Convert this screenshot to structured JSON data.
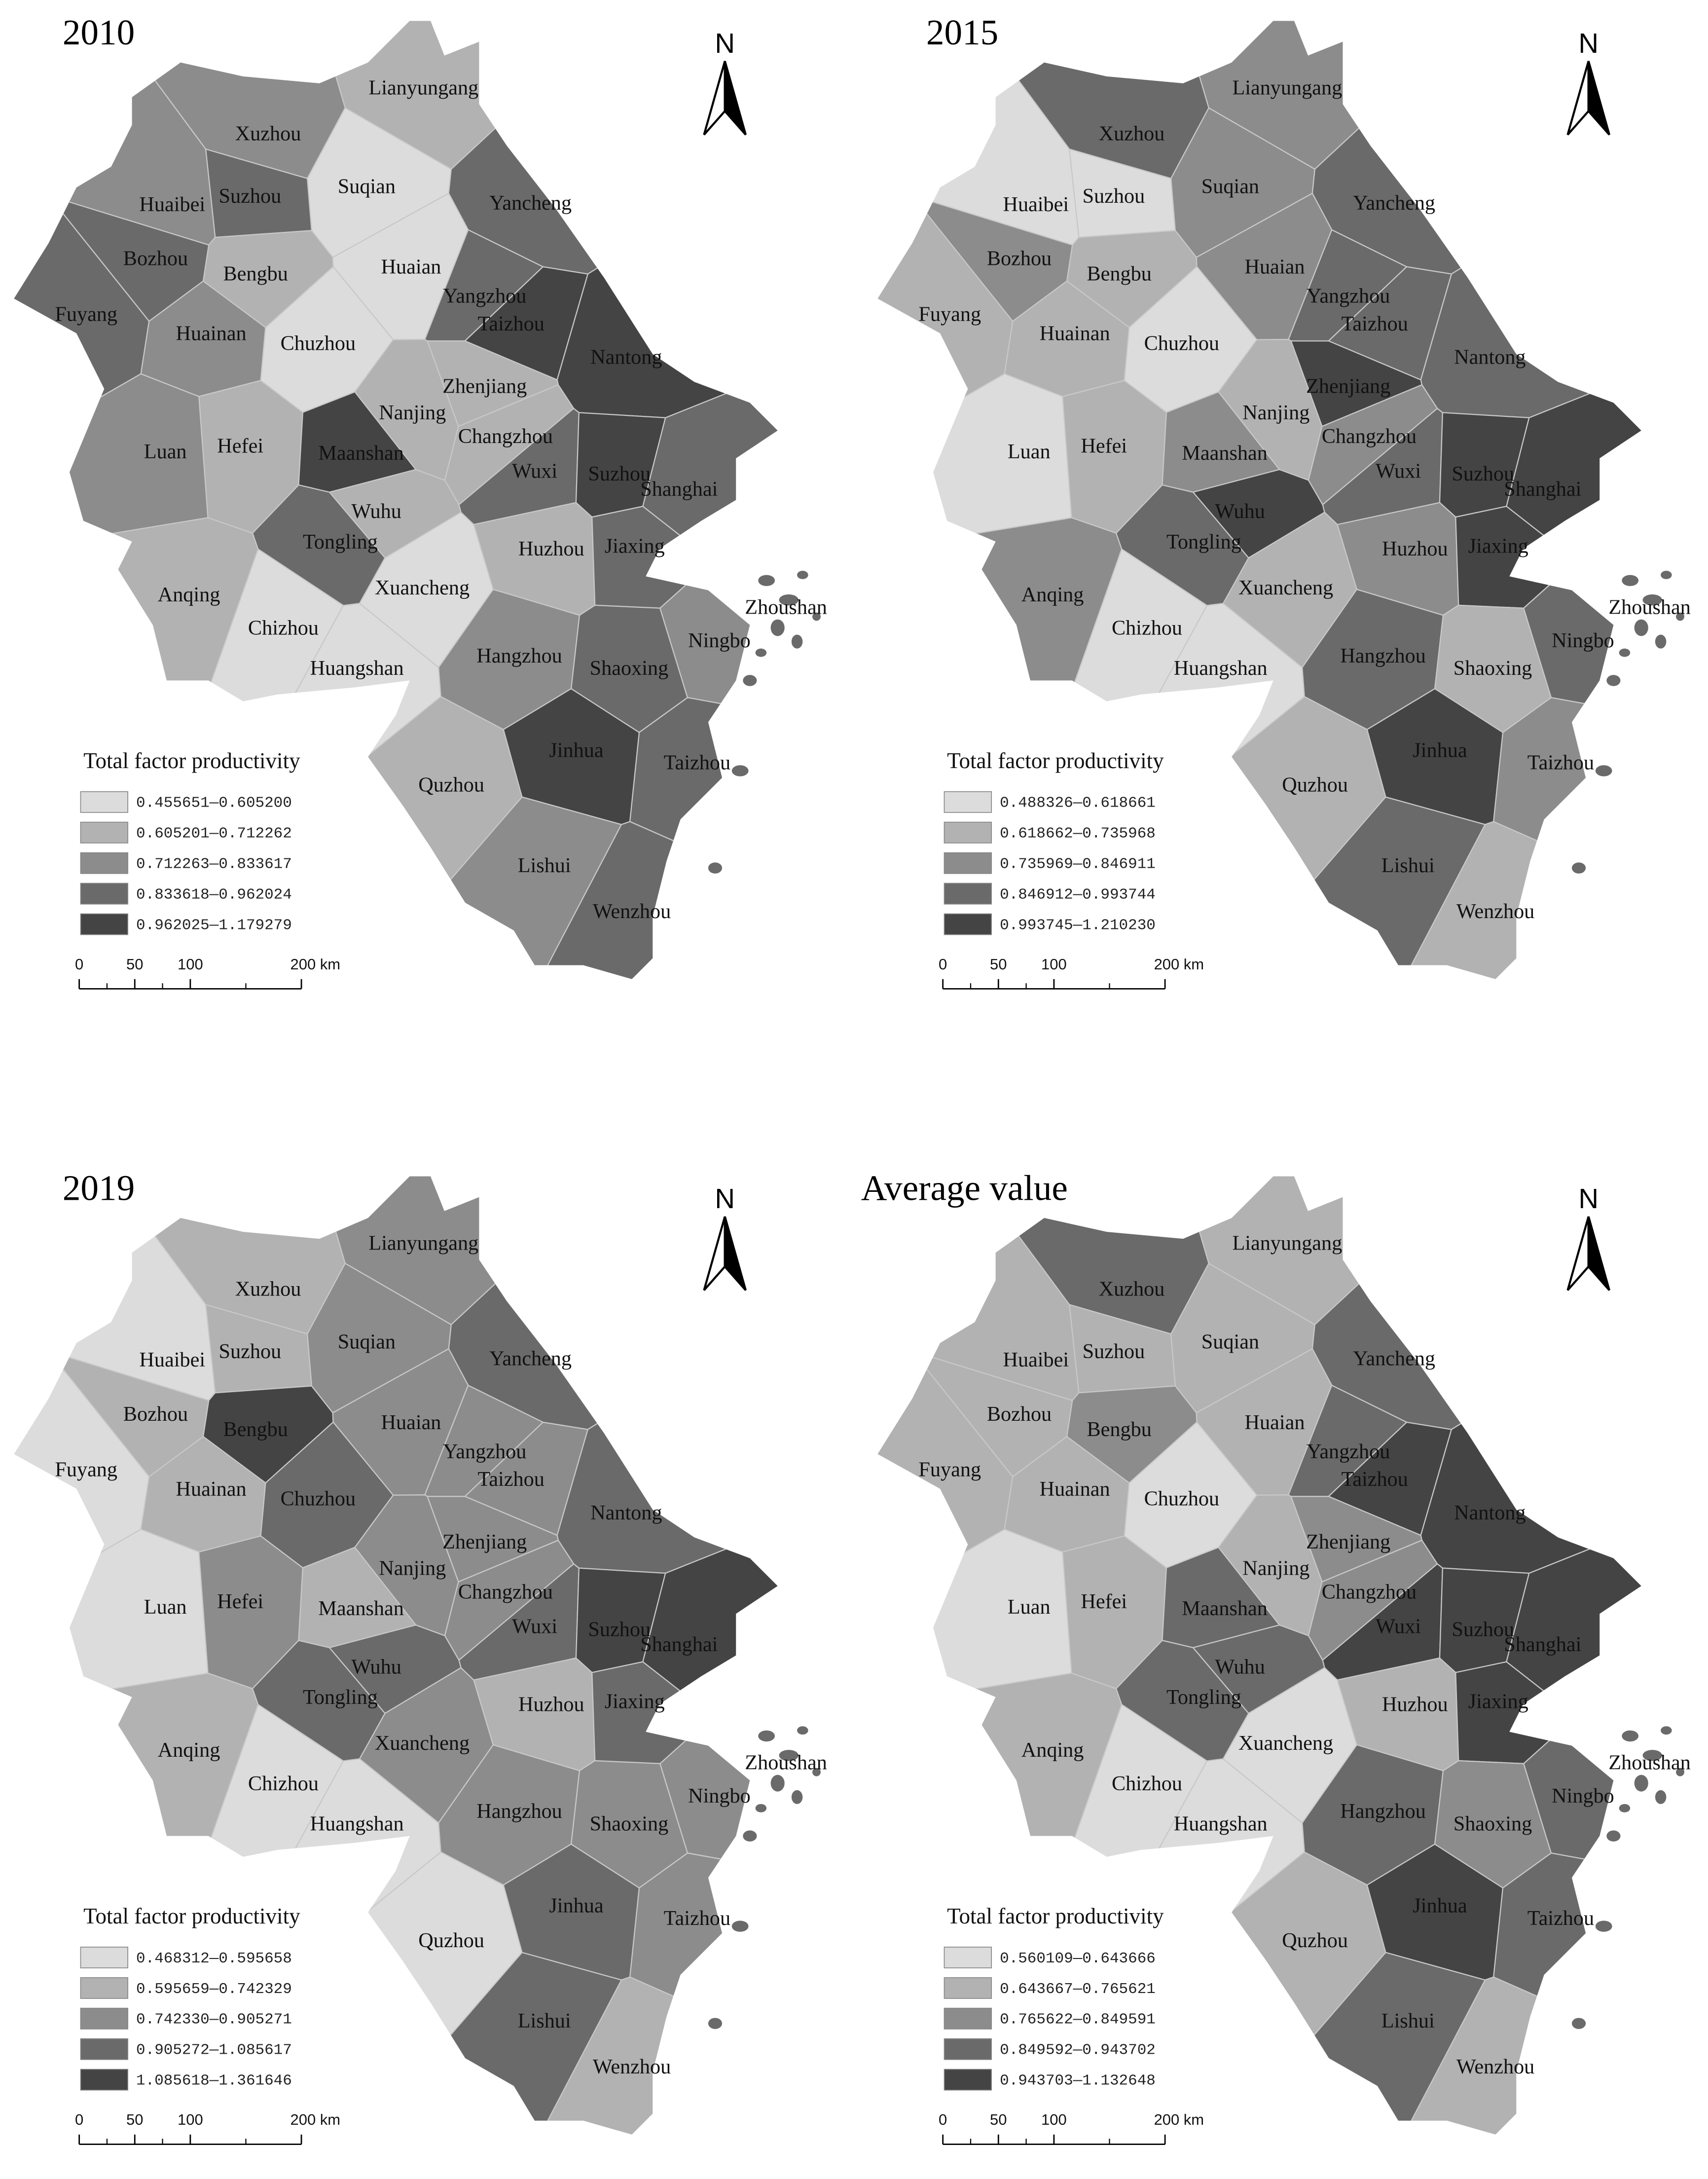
{
  "cities": [
    "Lianyungang",
    "Xuzhou",
    "Suzhou",
    "Suqian",
    "Yancheng",
    "Huaibei",
    "Bozhou",
    "Bengbu",
    "Huaian",
    "Yangzhou",
    "Taizhou",
    "Fuyang",
    "Huainan",
    "Chuzhou",
    "Nantong",
    "Zhenjiang",
    "Nanjing",
    "Luan",
    "Hefei",
    "Maanshan",
    "Changzhou",
    "Wuxi",
    "Suzhou",
    "Shanghai",
    "Wuhu",
    "Tongling",
    "Huzhou",
    "Jiaxing",
    "Anqing",
    "Xuancheng",
    "Zhoushan",
    "Chizhou",
    "Huangshan",
    "Hangzhou",
    "Shaoxing",
    "Ningbo",
    "Jinhua",
    "Taizhou",
    "Quzhou",
    "Lishui",
    "Wenzhou"
  ],
  "legend_title": "Total factor productivity",
  "north": "N",
  "scale": {
    "ticks": [
      0,
      50,
      100,
      {
        "value": 200,
        "label": "200 km"
      }
    ]
  },
  "class_colors": [
    "#dcdcdc",
    "#b2b2b2",
    "#8c8c8c",
    "#6a6a6a",
    "#444444"
  ],
  "panels": [
    {
      "title": "2010",
      "legend": [
        "0.455651—0.605200",
        "0.605201—0.712262",
        "0.712263—0.833617",
        "0.833618—0.962024",
        "0.962025—1.179279"
      ],
      "classes": [
        1,
        2,
        3,
        0,
        3,
        2,
        3,
        1,
        0,
        3,
        4,
        3,
        2,
        0,
        4,
        1,
        1,
        2,
        1,
        4,
        1,
        3,
        4,
        3,
        1,
        3,
        1,
        3,
        1,
        0,
        3,
        0,
        0,
        2,
        3,
        2,
        4,
        3,
        1,
        2,
        3
      ]
    },
    {
      "title": "2015",
      "legend": [
        "0.488326—0.618661",
        "0.618662—0.735968",
        "0.735969—0.846911",
        "0.846912—0.993744",
        "0.993745—1.210230"
      ],
      "classes": [
        2,
        3,
        0,
        2,
        3,
        0,
        2,
        1,
        2,
        3,
        3,
        1,
        1,
        0,
        3,
        4,
        1,
        0,
        1,
        2,
        2,
        3,
        4,
        4,
        4,
        3,
        2,
        4,
        2,
        1,
        3,
        0,
        0,
        3,
        1,
        3,
        4,
        2,
        1,
        3,
        1
      ]
    },
    {
      "title": "2019",
      "legend": [
        "0.468312—0.595658",
        "0.595659—0.742329",
        "0.742330—0.905271",
        "0.905272—1.085617",
        "1.085618—1.361646"
      ],
      "classes": [
        2,
        1,
        1,
        2,
        3,
        0,
        1,
        4,
        2,
        2,
        2,
        0,
        1,
        3,
        3,
        2,
        2,
        0,
        2,
        1,
        2,
        3,
        4,
        4,
        3,
        3,
        1,
        3,
        1,
        2,
        3,
        0,
        0,
        2,
        2,
        2,
        3,
        2,
        0,
        3,
        1
      ]
    },
    {
      "title": "Average value",
      "legend": [
        "0.560109—0.643666",
        "0.643667—0.765621",
        "0.765622—0.849591",
        "0.849592—0.943702",
        "0.943703—1.132648"
      ],
      "classes": [
        1,
        3,
        1,
        1,
        3,
        1,
        1,
        2,
        1,
        3,
        4,
        1,
        1,
        0,
        4,
        2,
        1,
        0,
        1,
        3,
        2,
        4,
        4,
        4,
        3,
        3,
        1,
        4,
        1,
        0,
        3,
        0,
        0,
        3,
        2,
        3,
        4,
        3,
        1,
        3,
        1
      ]
    }
  ]
}
